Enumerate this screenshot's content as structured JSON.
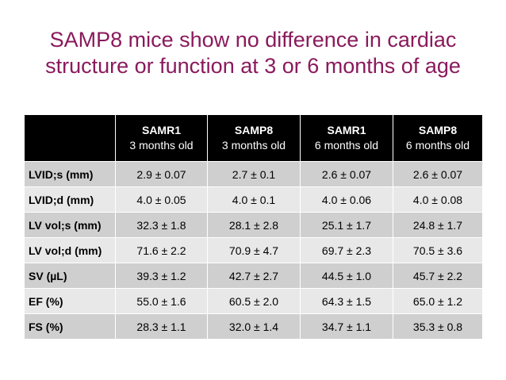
{
  "slide": {
    "title_line1": "SAMP8 mice show no difference in cardiac",
    "title_line2": "structure or function at 3 or 6 months of age",
    "title_color": "#8a1a5c"
  },
  "table": {
    "columns": [
      {
        "strain": "SAMR1",
        "age": "3 months old"
      },
      {
        "strain": "SAMP8",
        "age": "3 months old"
      },
      {
        "strain": "SAMR1",
        "age": "6 months old"
      },
      {
        "strain": "SAMP8",
        "age": "6 months old"
      }
    ],
    "rows": [
      {
        "label": "LVID;s (mm)",
        "values": [
          "2.9 ± 0.07",
          "2.7 ± 0.1",
          "2.6 ± 0.07",
          "2.6 ± 0.07"
        ]
      },
      {
        "label": "LVID;d (mm)",
        "values": [
          "4.0 ± 0.05",
          "4.0 ± 0.1",
          "4.0 ± 0.06",
          "4.0 ± 0.08"
        ]
      },
      {
        "label": "LV vol;s (mm)",
        "values": [
          "32.3 ± 1.8",
          "28.1 ± 2.8",
          "25.1 ± 1.7",
          "24.8 ± 1.7"
        ]
      },
      {
        "label": "LV vol;d (mm)",
        "values": [
          "71.6 ± 2.2",
          "70.9 ± 4.7",
          "69.7 ± 2.3",
          "70.5 ± 3.6"
        ]
      },
      {
        "label": "SV (µL)",
        "values": [
          "39.3 ± 1.2",
          "42.7 ± 2.7",
          "44.5 ± 1.0",
          "45.7 ± 2.2"
        ]
      },
      {
        "label": "EF (%)",
        "values": [
          "55.0 ± 1.6",
          "60.5 ± 2.0",
          "64.3 ± 1.5",
          "65.0 ± 1.2"
        ]
      },
      {
        "label": "FS (%)",
        "values": [
          "28.3 ± 1.1",
          "32.0 ± 1.4",
          "34.7 ± 1.1",
          "35.3 ± 0.8"
        ]
      }
    ]
  }
}
